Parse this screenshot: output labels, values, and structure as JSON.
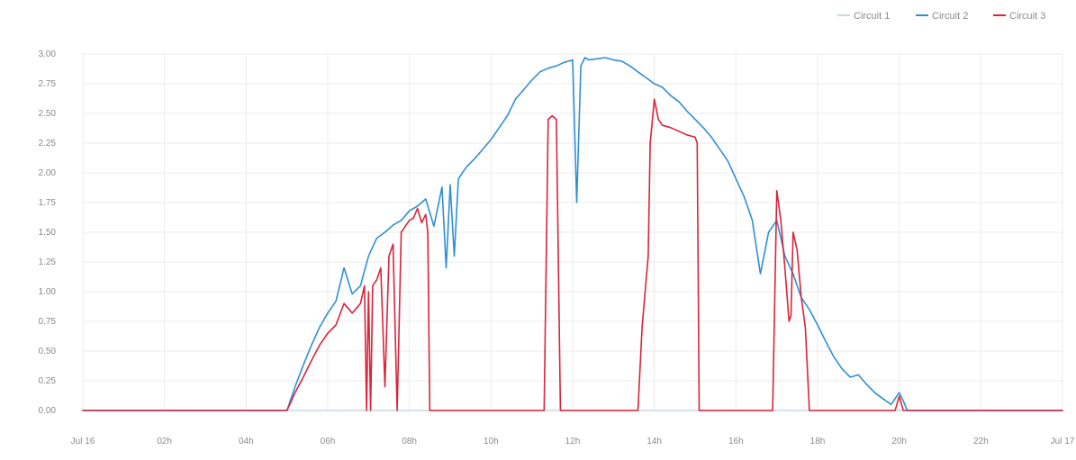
{
  "chart_data": {
    "type": "line",
    "title": "",
    "xlabel": "",
    "ylabel": "",
    "grid": true,
    "legend_position": "top-right",
    "x_range_hours": [
      0,
      24
    ],
    "ylim": [
      0,
      3.0
    ],
    "x_ticks": [
      {
        "hour": 0,
        "label": "Jul 16"
      },
      {
        "hour": 2,
        "label": "02h"
      },
      {
        "hour": 4,
        "label": "04h"
      },
      {
        "hour": 6,
        "label": "06h"
      },
      {
        "hour": 8,
        "label": "08h"
      },
      {
        "hour": 10,
        "label": "10h"
      },
      {
        "hour": 12,
        "label": "12h"
      },
      {
        "hour": 14,
        "label": "14h"
      },
      {
        "hour": 16,
        "label": "16h"
      },
      {
        "hour": 18,
        "label": "18h"
      },
      {
        "hour": 20,
        "label": "20h"
      },
      {
        "hour": 22,
        "label": "22h"
      },
      {
        "hour": 24,
        "label": "Jul 17"
      }
    ],
    "y_ticks": [
      {
        "value": 0,
        "label": "0.00"
      },
      {
        "value": 0.25,
        "label": "0.25"
      },
      {
        "value": 0.5,
        "label": "0.50"
      },
      {
        "value": 0.75,
        "label": "0.75"
      },
      {
        "value": 1.0,
        "label": "1.00"
      },
      {
        "value": 1.25,
        "label": "1.25"
      },
      {
        "value": 1.5,
        "label": "1.50"
      },
      {
        "value": 1.75,
        "label": "1.75"
      },
      {
        "value": 2.0,
        "label": "2.00"
      },
      {
        "value": 2.25,
        "label": "2.25"
      },
      {
        "value": 2.5,
        "label": "2.50"
      },
      {
        "value": 2.75,
        "label": "2.75"
      },
      {
        "value": 3.0,
        "label": "3.00"
      }
    ],
    "series": [
      {
        "name": "Circuit 1",
        "color": "#c9d7e6",
        "x": [
          0,
          24
        ],
        "y": [
          0,
          0
        ]
      },
      {
        "name": "Circuit 2",
        "color": "#2f8fd5",
        "x": [
          0,
          5.0,
          5.2,
          5.4,
          5.6,
          5.8,
          6.0,
          6.2,
          6.4,
          6.6,
          6.8,
          7.0,
          7.2,
          7.4,
          7.6,
          7.8,
          8.0,
          8.2,
          8.4,
          8.6,
          8.8,
          8.9,
          9.0,
          9.1,
          9.2,
          9.4,
          9.6,
          9.8,
          10.0,
          10.2,
          10.4,
          10.6,
          10.8,
          11.0,
          11.2,
          11.4,
          11.6,
          11.8,
          12.0,
          12.1,
          12.2,
          12.3,
          12.4,
          12.6,
          12.8,
          13.0,
          13.2,
          13.4,
          13.6,
          13.8,
          14.0,
          14.2,
          14.4,
          14.6,
          14.8,
          15.0,
          15.2,
          15.4,
          15.6,
          15.8,
          16.0,
          16.2,
          16.4,
          16.6,
          16.8,
          17.0,
          17.2,
          17.4,
          17.5,
          17.6,
          17.8,
          18.0,
          18.2,
          18.4,
          18.6,
          18.8,
          19.0,
          19.2,
          19.4,
          19.6,
          19.8,
          19.9,
          20.0,
          20.1,
          20.2,
          24
        ],
        "y": [
          0,
          0,
          0.2,
          0.38,
          0.55,
          0.7,
          0.82,
          0.92,
          1.2,
          0.98,
          1.05,
          1.3,
          1.45,
          1.5,
          1.56,
          1.6,
          1.68,
          1.72,
          1.78,
          1.55,
          1.88,
          1.2,
          1.9,
          1.3,
          1.95,
          2.05,
          2.12,
          2.2,
          2.28,
          2.38,
          2.48,
          2.62,
          2.7,
          2.78,
          2.85,
          2.88,
          2.9,
          2.93,
          2.95,
          1.75,
          2.9,
          2.97,
          2.95,
          2.96,
          2.97,
          2.95,
          2.94,
          2.9,
          2.85,
          2.8,
          2.75,
          2.72,
          2.65,
          2.6,
          2.52,
          2.45,
          2.38,
          2.3,
          2.2,
          2.1,
          1.95,
          1.8,
          1.6,
          1.15,
          1.5,
          1.6,
          1.3,
          1.15,
          1.05,
          0.95,
          0.85,
          0.72,
          0.58,
          0.45,
          0.35,
          0.28,
          0.3,
          0.22,
          0.15,
          0.1,
          0.05,
          0.1,
          0.15,
          0.08,
          0,
          0
        ]
      },
      {
        "name": "Circuit 3",
        "color": "#d9243a",
        "x": [
          0,
          5.0,
          5.2,
          5.4,
          5.6,
          5.8,
          6.0,
          6.2,
          6.4,
          6.6,
          6.8,
          6.9,
          6.95,
          7.0,
          7.05,
          7.1,
          7.2,
          7.3,
          7.4,
          7.5,
          7.6,
          7.7,
          7.8,
          7.9,
          8.0,
          8.1,
          8.2,
          8.3,
          8.4,
          8.45,
          8.5,
          8.6,
          11.3,
          11.4,
          11.5,
          11.6,
          11.7,
          13.6,
          13.7,
          13.8,
          13.85,
          13.9,
          14.0,
          14.1,
          14.2,
          14.4,
          14.6,
          14.8,
          15.0,
          15.05,
          15.1,
          16.9,
          17.0,
          17.1,
          17.2,
          17.3,
          17.35,
          17.4,
          17.5,
          17.6,
          17.7,
          17.8,
          19.9,
          20.0,
          20.1,
          24
        ],
        "y": [
          0,
          0,
          0.15,
          0.28,
          0.42,
          0.55,
          0.65,
          0.72,
          0.9,
          0.82,
          0.9,
          1.05,
          0,
          1.0,
          0,
          1.05,
          1.1,
          1.2,
          0.2,
          1.3,
          1.4,
          0,
          1.5,
          1.55,
          1.6,
          1.62,
          1.7,
          1.58,
          1.65,
          1.5,
          0,
          0,
          0,
          2.45,
          2.48,
          2.45,
          0,
          0,
          0.7,
          1.1,
          1.3,
          2.25,
          2.62,
          2.45,
          2.4,
          2.38,
          2.35,
          2.32,
          2.3,
          2.25,
          0,
          0,
          1.85,
          1.6,
          1.2,
          0.75,
          0.8,
          1.5,
          1.35,
          0.95,
          0.7,
          0,
          0,
          0.12,
          0,
          0
        ]
      }
    ]
  }
}
